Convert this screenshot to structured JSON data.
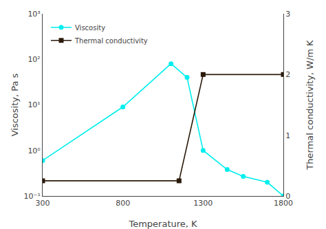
{
  "chart_data": {
    "type": "line",
    "xlabel": "Temperature, K",
    "ylabel": "Viscosity, Pa s",
    "y2label": "Thermal conductivity, W/m K",
    "log": "y",
    "xlim": [
      300,
      1800
    ],
    "xticks": [
      300,
      800,
      1300,
      1800
    ],
    "ylim": [
      0.1,
      1000
    ],
    "yticks": [
      {
        "value": 0.1,
        "label": "10⁻¹"
      },
      {
        "value": 1,
        "label": "10⁰"
      },
      {
        "value": 10,
        "label": "10¹"
      },
      {
        "value": 100,
        "label": "10²"
      },
      {
        "value": 1000,
        "label": "10³"
      }
    ],
    "y2lim": [
      0,
      3
    ],
    "y2ticks": [
      0,
      1,
      2,
      3
    ],
    "grid": false,
    "legend": "upper left",
    "series": [
      {
        "name": "Viscosity",
        "color": "#00EEEE",
        "marker": "circle",
        "line_style": "solid",
        "x": [
          300,
          800,
          1100,
          1200,
          1300,
          1450,
          1550,
          1700,
          1800
        ],
        "values": [
          0.6,
          9.0,
          80.0,
          40.0,
          1.0,
          0.38,
          0.27,
          0.2,
          0.1
        ]
      },
      {
        "name": "Thermal conductivity",
        "color": "#2A1A0A",
        "marker": "square",
        "line_style": "solid",
        "axis": "y2",
        "x": [
          300,
          1150,
          1300,
          1800
        ],
        "values": [
          0.25,
          0.25,
          2.0,
          2.0
        ]
      }
    ]
  }
}
